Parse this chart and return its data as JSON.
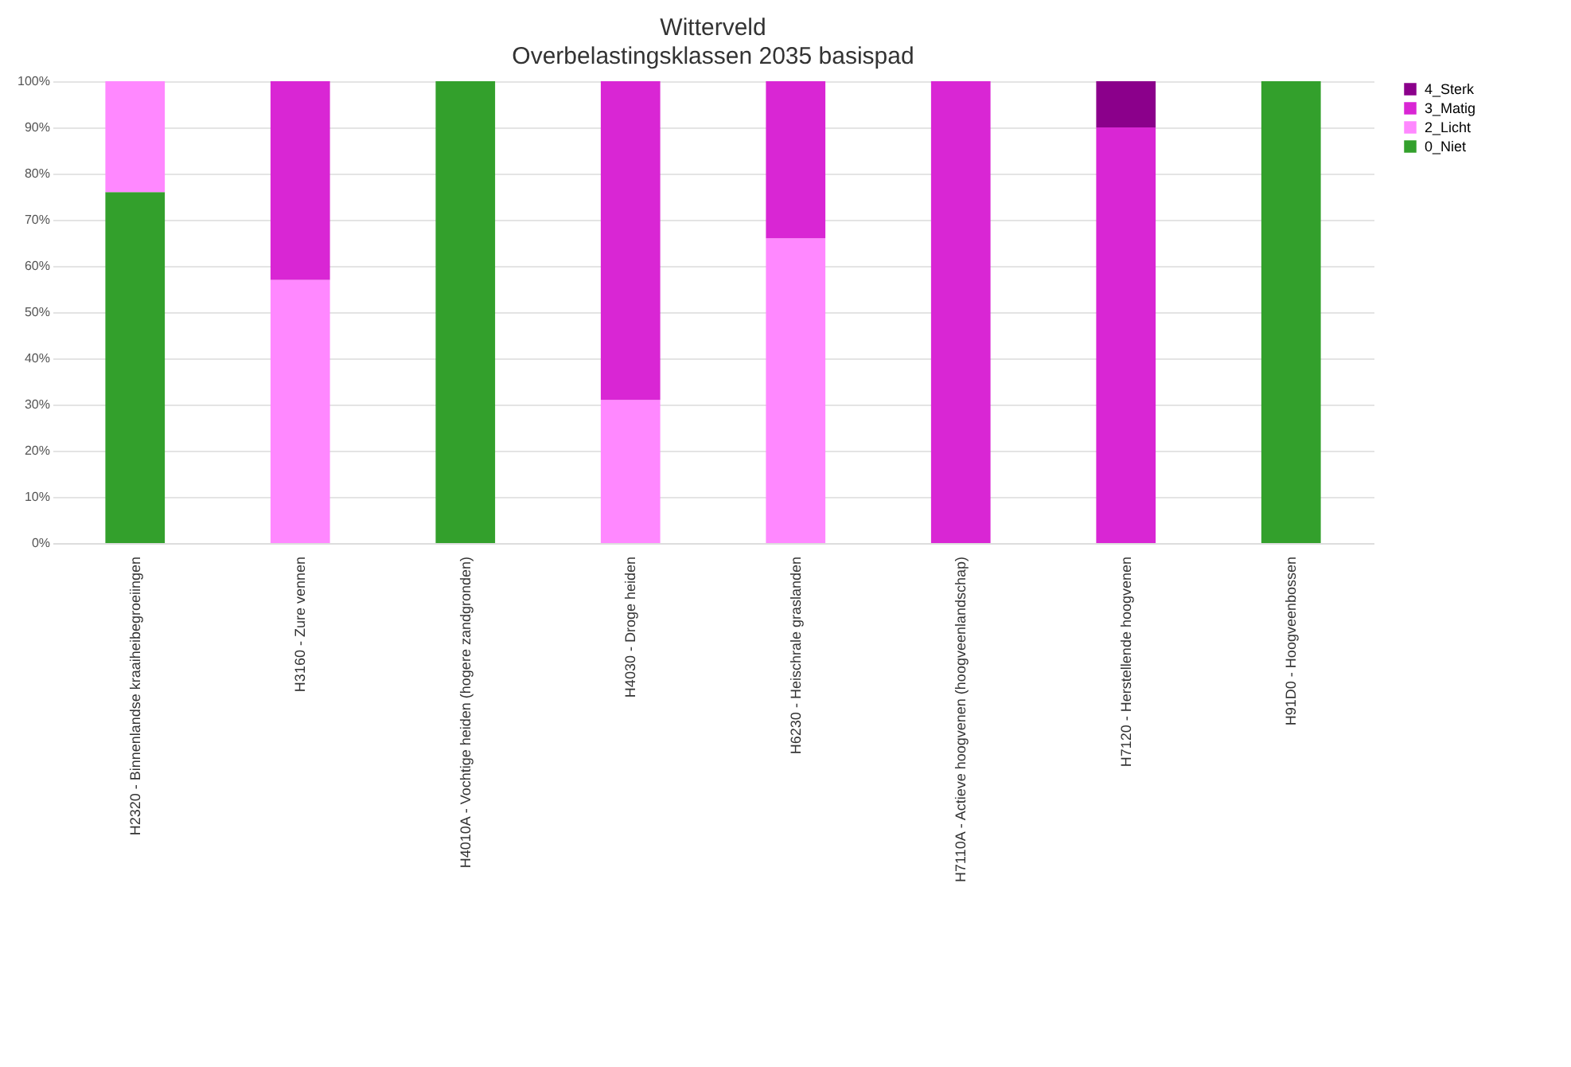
{
  "chart_data": {
    "type": "bar",
    "title": "Witterveld",
    "subtitle": "Overbelastingsklassen 2035 basispad",
    "stacked": true,
    "grid": "y",
    "legend": "right",
    "categories": [
      "H2320 - Binnenlandse kraaiheibegroeiingen",
      "H3160 - Zure vennen",
      "H4010A - Vochtige heiden (hogere zandgronden)",
      "H4030 - Droge heiden",
      "H6230 - Heischrale graslanden",
      "H7110A - Actieve hoogvenen (hoogveenlandschap)",
      "H7120 - Herstellende hoogvenen",
      "H91D0 - Hoogveenbossen"
    ],
    "series": [
      {
        "name": "0_Niet",
        "color": "#33a02c",
        "values": [
          76,
          0,
          100,
          0,
          0,
          0,
          0,
          100
        ]
      },
      {
        "name": "2_Licht",
        "color": "#ff88ff",
        "values": [
          24,
          57,
          0,
          31,
          66,
          0,
          0,
          0
        ]
      },
      {
        "name": "3_Matig",
        "color": "#d926d4",
        "values": [
          0,
          43,
          0,
          69,
          34,
          100,
          90,
          0
        ]
      },
      {
        "name": "4_Sterk",
        "color": "#8b008b",
        "values": [
          0,
          0,
          0,
          0,
          0,
          0,
          10,
          0
        ]
      }
    ],
    "ylim": [
      0,
      100
    ],
    "yticks": [
      {
        "value": 0,
        "label": "0%"
      },
      {
        "value": 10,
        "label": "10%"
      },
      {
        "value": 20,
        "label": "20%"
      },
      {
        "value": 30,
        "label": "30%"
      },
      {
        "value": 40,
        "label": "40%"
      },
      {
        "value": 50,
        "label": "50%"
      },
      {
        "value": 60,
        "label": "60%"
      },
      {
        "value": 70,
        "label": "70%"
      },
      {
        "value": 80,
        "label": "80%"
      },
      {
        "value": 90,
        "label": "90%"
      },
      {
        "value": 100,
        "label": "100%"
      }
    ]
  }
}
